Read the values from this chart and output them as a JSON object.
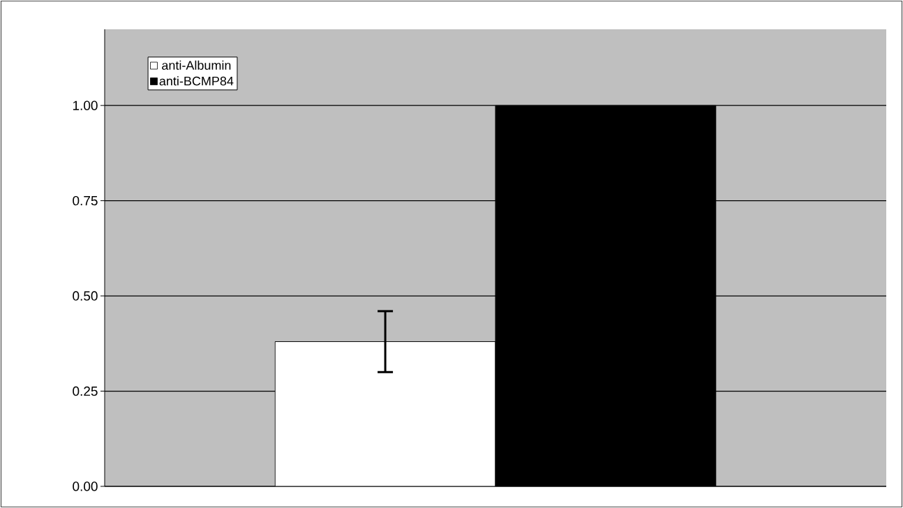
{
  "chart_data": {
    "type": "bar",
    "categories": [
      null
    ],
    "series": [
      {
        "name": "anti-Albumin",
        "color": "#ffffff",
        "values": [
          0.38
        ],
        "errors": [
          0.08
        ]
      },
      {
        "name": "anti-BCMP84",
        "color": "#000000",
        "values": [
          1.0
        ]
      }
    ],
    "ylim": [
      0,
      1.2
    ],
    "yticks": [
      {
        "value": 0,
        "label": "0.00"
      },
      {
        "value": 0.25,
        "label": "0.25"
      },
      {
        "value": 0.5,
        "label": "0.50"
      },
      {
        "value": 0.75,
        "label": "0.75"
      },
      {
        "value": 1,
        "label": "1.00"
      }
    ],
    "grid": "y",
    "legend": "top left"
  }
}
